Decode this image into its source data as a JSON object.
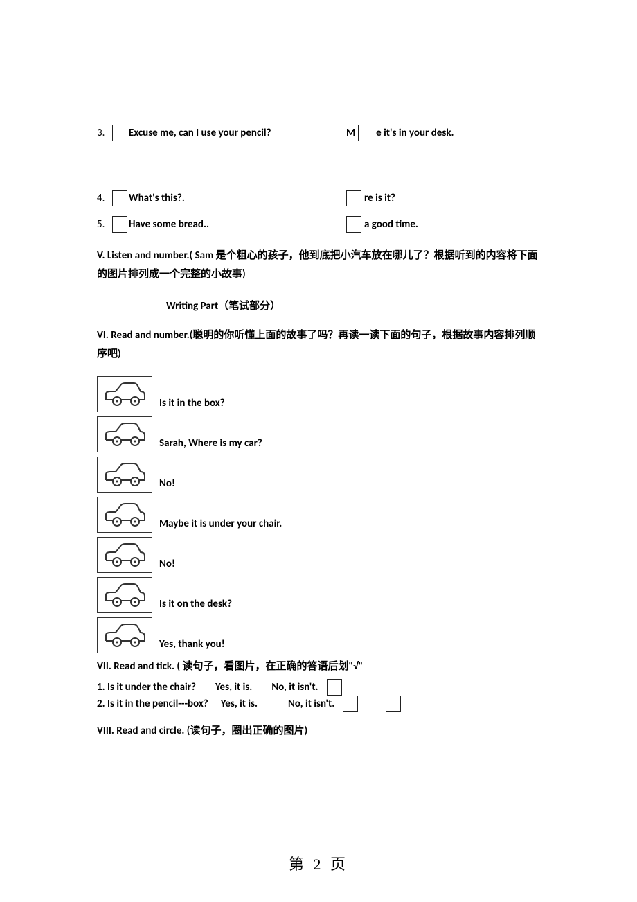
{
  "q3": {
    "num": "3.",
    "left": "Excuse me, can I use your pencil?",
    "right_prefix": "M",
    "right_suffix": "e it's in your desk."
  },
  "q4": {
    "num": "4.",
    "left": "What's this?.",
    "right_suffix": "re is it?"
  },
  "q5": {
    "num": "5.",
    "left": "Have some bread..",
    "right_suffix": " a good time."
  },
  "sectionV": "V. Listen and number.( Sam 是个粗心的孩子，他到底把小汽车放在哪儿了？根据听到的内容将下面的图片排列成一个完整的小故事)",
  "writingPart": "Writing Part（笔试部分）",
  "sectionVI": "VI. Read and number.(聪明的你听懂上面的故事了吗？再读一读下面的句子，根据故事内容排列顺序吧)",
  "cars": [
    "Is it in the box?",
    "Sarah, Where is my car?",
    "No!",
    "Maybe it is under your chair.",
    "No!",
    "Is it on the desk?",
    "Yes, thank you!"
  ],
  "sectionVII": "VII. Read and tick. ( 读句子，看图片，在正确的答语后划\"√\"",
  "vii_q1": {
    "q": "1. Is it under the chair?",
    "a1": "Yes, it is.",
    "a2": "No, it isn't."
  },
  "vii_q2": {
    "q": "2. Is it in the pencil---box?",
    "a1": "Yes, it is.",
    "a2": "No, it isn't."
  },
  "sectionVIII": "VIII. Read and circle. (读句子，圈出正确的图片)",
  "pageNum": "第 2 页",
  "carSvg": {
    "stroke": "#333333",
    "strokeWidth": 2
  }
}
